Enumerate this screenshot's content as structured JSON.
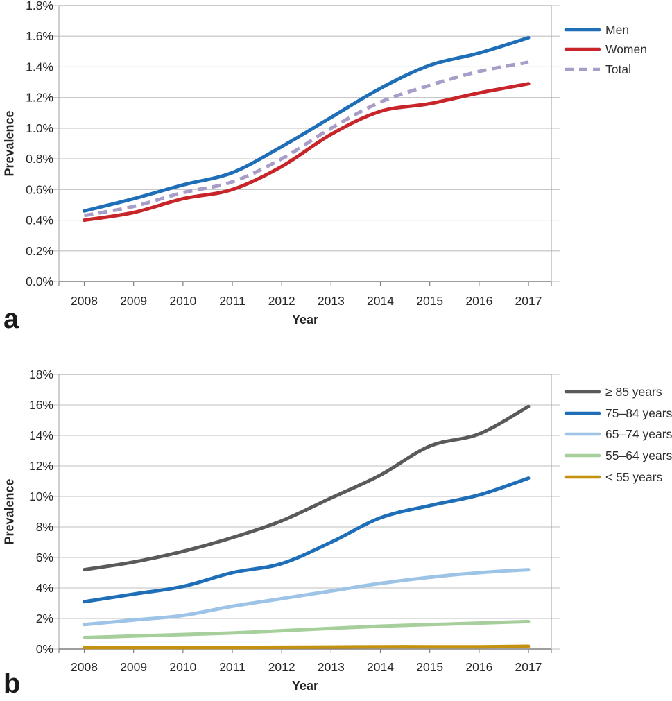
{
  "figure": {
    "panels": [
      {
        "label": "a"
      },
      {
        "label": "b"
      }
    ]
  },
  "chart_data": [
    {
      "type": "line",
      "panel": "a",
      "title": "",
      "xlabel": "Year",
      "ylabel": "Prevalence",
      "x": [
        2008,
        2009,
        2010,
        2011,
        2012,
        2013,
        2014,
        2015,
        2016,
        2017
      ],
      "x_tick_labels": [
        "2008",
        "2009",
        "2010",
        "2011",
        "2012",
        "2013",
        "2014",
        "2015",
        "2016",
        "2017"
      ],
      "y_ticks": [
        "0.0%",
        "0.2%",
        "0.4%",
        "0.6%",
        "0.8%",
        "1.0%",
        "1.2%",
        "1.4%",
        "1.6%",
        "1.8%"
      ],
      "ylim": [
        0,
        1.8
      ],
      "y_unit": "percent",
      "grid": true,
      "legend_position": "right",
      "series": [
        {
          "name": "Men",
          "color": "#1F6FB8",
          "style": "solid",
          "values": [
            0.46,
            0.54,
            0.63,
            0.71,
            0.88,
            1.07,
            1.26,
            1.41,
            1.49,
            1.59
          ]
        },
        {
          "name": "Women",
          "color": "#C7252A",
          "style": "solid",
          "values": [
            0.4,
            0.45,
            0.54,
            0.6,
            0.75,
            0.96,
            1.11,
            1.16,
            1.23,
            1.29
          ]
        },
        {
          "name": "Total",
          "color": "#A89CC8",
          "style": "dashed",
          "values": [
            0.43,
            0.49,
            0.58,
            0.65,
            0.8,
            1.0,
            1.17,
            1.28,
            1.37,
            1.43
          ]
        }
      ]
    },
    {
      "type": "line",
      "panel": "b",
      "title": "",
      "xlabel": "Year",
      "ylabel": "Prevalence",
      "x": [
        2008,
        2009,
        2010,
        2011,
        2012,
        2013,
        2014,
        2015,
        2016,
        2017
      ],
      "x_tick_labels": [
        "2008",
        "2009",
        "2010",
        "2011",
        "2012",
        "2013",
        "2014",
        "2015",
        "2016",
        "2017"
      ],
      "y_ticks": [
        "0%",
        "2%",
        "4%",
        "6%",
        "8%",
        "10%",
        "12%",
        "14%",
        "16%",
        "18%"
      ],
      "ylim": [
        0,
        18
      ],
      "y_unit": "percent",
      "grid": true,
      "legend_position": "right",
      "series": [
        {
          "name": "≥ 85 years",
          "color": "#5A5A5A",
          "style": "solid",
          "values": [
            5.2,
            5.7,
            6.4,
            7.3,
            8.4,
            9.9,
            11.4,
            13.3,
            14.1,
            15.9
          ]
        },
        {
          "name": "75–84 years",
          "color": "#1F6FB8",
          "style": "solid",
          "values": [
            3.1,
            3.6,
            4.1,
            5.0,
            5.6,
            7.0,
            8.6,
            9.4,
            10.1,
            11.2
          ]
        },
        {
          "name": "65–74 years",
          "color": "#9DC3E6",
          "style": "solid",
          "values": [
            1.6,
            1.9,
            2.2,
            2.8,
            3.3,
            3.8,
            4.3,
            4.7,
            5.0,
            5.2
          ]
        },
        {
          "name": "55–64 years",
          "color": "#A6CF9B",
          "style": "solid",
          "values": [
            0.75,
            0.85,
            0.95,
            1.05,
            1.2,
            1.35,
            1.5,
            1.6,
            1.7,
            1.8
          ]
        },
        {
          "name": "< 55 years",
          "color": "#C4920E",
          "style": "solid",
          "values": [
            0.1,
            0.1,
            0.1,
            0.1,
            0.12,
            0.13,
            0.15,
            0.15,
            0.15,
            0.18
          ]
        }
      ]
    }
  ]
}
